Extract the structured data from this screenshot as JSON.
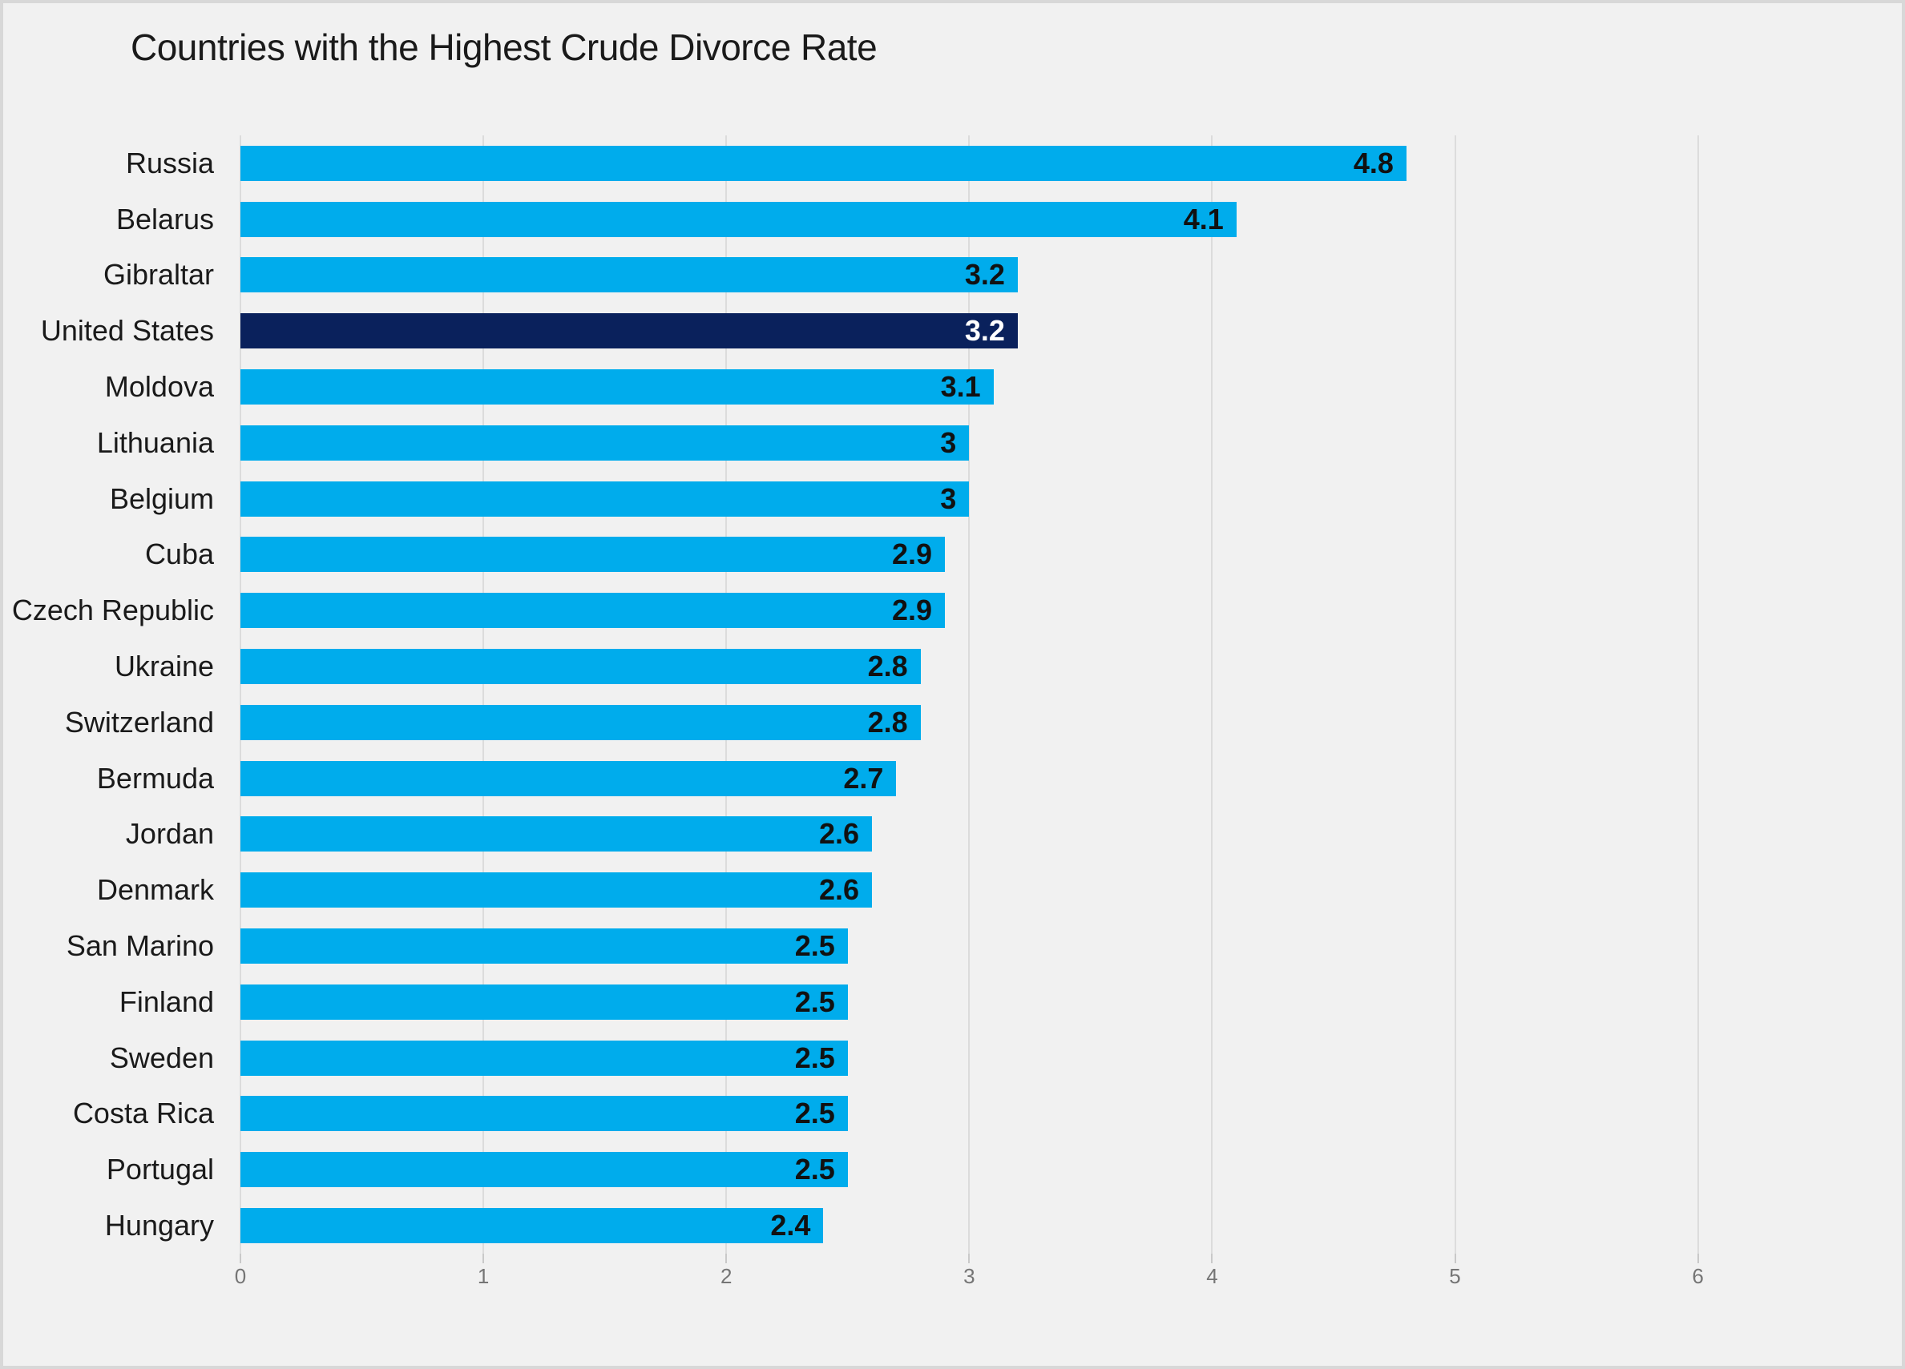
{
  "title": "Countries with the Highest Crude Divorce Rate",
  "colors": {
    "background": "#f1f1f1",
    "border": "#d8d8d8",
    "bar": "#00acec",
    "highlight_bar": "#0a215c",
    "gridline": "#dcdcdc",
    "tick_mark": "#c9c9c9",
    "tick_text": "#757575",
    "label_text": "#1a1a1a",
    "value_text": "#111111",
    "highlight_value_text": "#ffffff"
  },
  "chart_data": {
    "type": "bar",
    "orientation": "horizontal",
    "title": "Countries with the Highest Crude Divorce Rate",
    "categories": [
      "Russia",
      "Belarus",
      "Gibraltar",
      "United States",
      "Moldova",
      "Lithuania",
      "Belgium",
      "Cuba",
      "Czech Republic",
      "Ukraine",
      "Switzerland",
      "Bermuda",
      "Jordan",
      "Denmark",
      "San Marino",
      "Finland",
      "Sweden",
      "Costa Rica",
      "Portugal",
      "Hungary"
    ],
    "values": [
      4.8,
      4.1,
      3.2,
      3.2,
      3.1,
      3,
      3,
      2.9,
      2.9,
      2.8,
      2.8,
      2.7,
      2.6,
      2.6,
      2.5,
      2.5,
      2.5,
      2.5,
      2.5,
      2.4
    ],
    "value_labels": [
      "4.8",
      "4.1",
      "3.2",
      "3.2",
      "3.1",
      "3",
      "3",
      "2.9",
      "2.9",
      "2.8",
      "2.8",
      "2.7",
      "2.6",
      "2.6",
      "2.5",
      "2.5",
      "2.5",
      "2.5",
      "2.5",
      "2.4"
    ],
    "highlight_index": 3,
    "highlight_category": "United States",
    "x_ticks": [
      0,
      1,
      2,
      3,
      4,
      5,
      6
    ],
    "xlim": [
      0,
      6.76
    ],
    "xlabel": "",
    "ylabel": "",
    "grid": true,
    "legend": false,
    "value_labels_position": "inside-end"
  }
}
